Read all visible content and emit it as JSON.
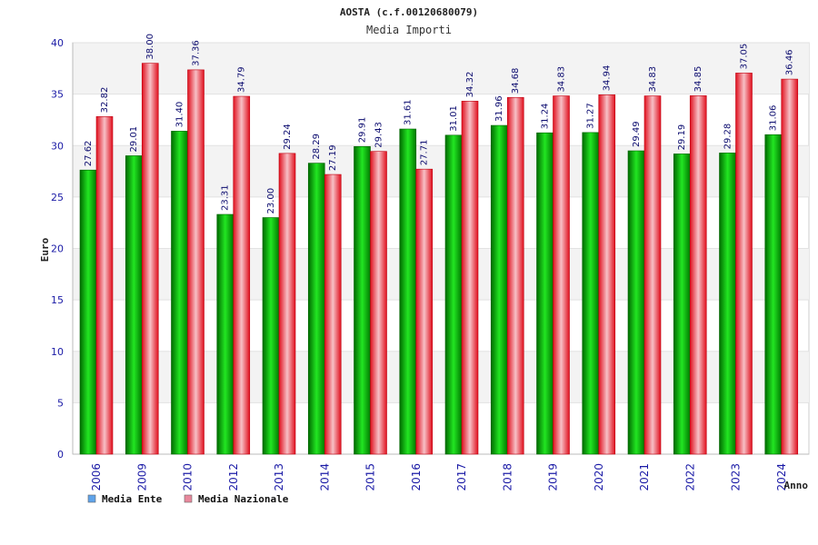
{
  "chart_data": {
    "type": "bar",
    "title": "AOSTA (c.f.00120680079)",
    "subtitle": "Media Importi",
    "xlabel": "Anno",
    "ylabel": "Euro",
    "ylim": [
      0,
      40
    ],
    "yticks": [
      0,
      5,
      10,
      15,
      20,
      25,
      30,
      35,
      40
    ],
    "categories": [
      "2006",
      "2009",
      "2010",
      "2012",
      "2013",
      "2014",
      "2015",
      "2016",
      "2017",
      "2018",
      "2019",
      "2020",
      "2021",
      "2022",
      "2023",
      "2024"
    ],
    "series": [
      {
        "name": "Media Ente",
        "color": "#00aa00",
        "values": [
          27.62,
          29.01,
          31.4,
          23.31,
          23.0,
          28.29,
          29.91,
          31.61,
          31.01,
          31.96,
          31.24,
          31.27,
          29.49,
          29.19,
          29.28,
          31.06
        ],
        "labels": [
          "27.62",
          "29.01",
          "31.40",
          "23.31",
          "23.00",
          "28.29",
          "29.91",
          "31.61",
          "31.01",
          "31.96",
          "31.24",
          "31.27",
          "29.49",
          "29.19",
          "29.28",
          "31.06"
        ]
      },
      {
        "name": "Media Nazionale",
        "color": "#ee1c2e",
        "values": [
          32.82,
          38.0,
          37.36,
          34.79,
          29.24,
          27.19,
          29.43,
          27.71,
          34.32,
          34.68,
          34.83,
          34.94,
          34.83,
          34.85,
          37.05,
          36.46
        ],
        "labels": [
          "32.82",
          "38.00",
          "37.36",
          "34.79",
          "29.24",
          "27.19",
          "29.43",
          "27.71",
          "34.32",
          "34.68",
          "34.83",
          "34.94",
          "34.83",
          "34.85",
          "37.05",
          "36.46"
        ]
      }
    ],
    "legend": [
      {
        "label": "Media Ente",
        "color": "#5fa3ea"
      },
      {
        "label": "Media Nazionale",
        "color": "#e8889c"
      }
    ],
    "legend_position": "bottom-left",
    "grid": true
  }
}
